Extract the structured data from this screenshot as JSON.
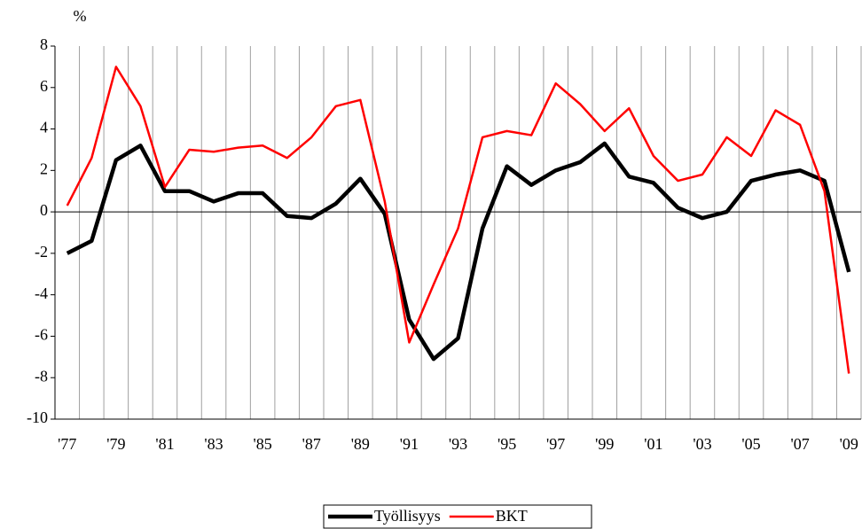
{
  "chart_data": {
    "type": "line",
    "y_label": "%",
    "categories": [
      "'77",
      null,
      "'79",
      null,
      "'81",
      null,
      "'83",
      null,
      "'85",
      null,
      "'87",
      null,
      "'89",
      null,
      "'91",
      null,
      "'93",
      null,
      "'95",
      null,
      "'97",
      null,
      "'99",
      null,
      "'01",
      null,
      "'03",
      null,
      "'05",
      null,
      "'07",
      null,
      "'09"
    ],
    "series": [
      {
        "name": "Työllisyys",
        "color": "#000000",
        "values": [
          -2.0,
          -1.4,
          2.5,
          3.2,
          1.0,
          1.0,
          0.5,
          0.9,
          0.9,
          -0.2,
          -0.3,
          0.4,
          1.6,
          -0.1,
          -5.2,
          -7.1,
          -6.1,
          -0.8,
          2.2,
          1.3,
          2.0,
          2.4,
          3.3,
          1.7,
          1.4,
          0.2,
          -0.3,
          0.0,
          1.5,
          1.8,
          2.0,
          1.5,
          -2.9
        ]
      },
      {
        "name": "BKT",
        "color": "#ff0000",
        "values": [
          0.3,
          2.6,
          7.0,
          5.1,
          1.2,
          3.0,
          2.9,
          3.1,
          3.2,
          2.6,
          3.6,
          5.1,
          5.4,
          0.5,
          -6.3,
          -3.5,
          -0.8,
          3.6,
          3.9,
          3.7,
          6.2,
          5.2,
          3.9,
          5.0,
          2.7,
          1.5,
          1.8,
          3.6,
          2.7,
          4.9,
          4.2,
          1.0,
          -7.8
        ]
      }
    ],
    "ylim": [
      -10,
      8
    ],
    "yticks": [
      -10,
      -8,
      -6,
      -4,
      -2,
      0,
      2,
      4,
      6,
      8
    ],
    "grid": "vertical",
    "legend": "bottom"
  }
}
